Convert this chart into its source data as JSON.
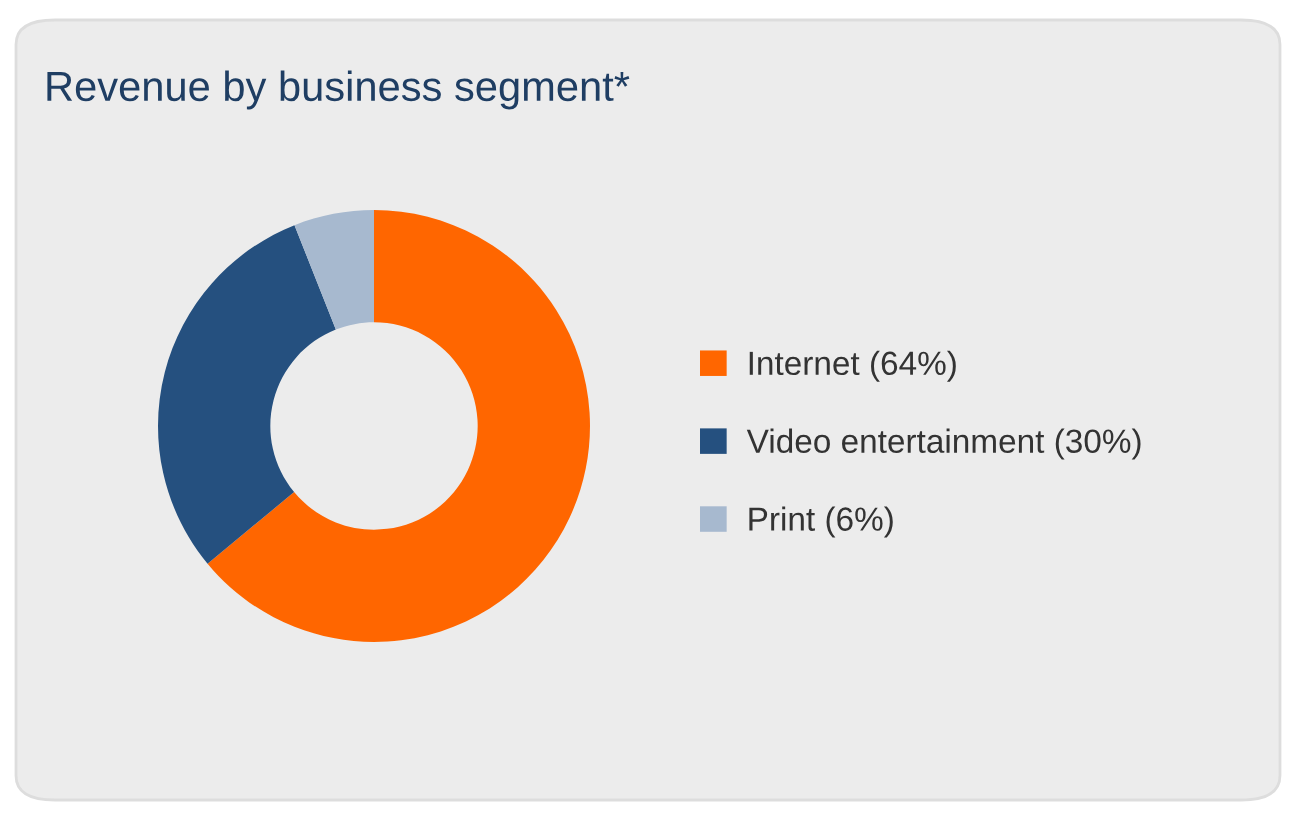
{
  "chart_data": {
    "type": "donut",
    "title": "Revenue by business segment*",
    "categories": [
      "Internet (64%)",
      "Video entertainment (30%)",
      "Print (6%)"
    ],
    "values": [
      64,
      30,
      6
    ],
    "colors": [
      "#ff6600",
      "#25507f",
      "#a7b9cf"
    ],
    "legend": "right"
  }
}
